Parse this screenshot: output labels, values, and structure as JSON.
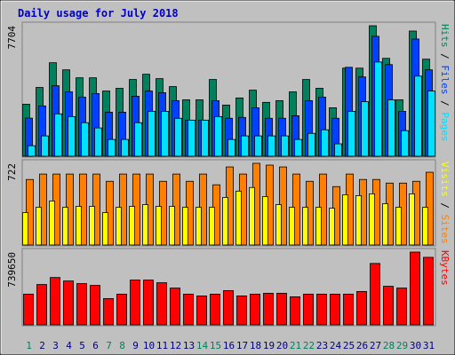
{
  "chart_data": [
    {
      "type": "bar",
      "title": "Daily usage for July 2018",
      "categories": [
        "1",
        "2",
        "3",
        "4",
        "5",
        "6",
        "7",
        "8",
        "9",
        "10",
        "11",
        "12",
        "13",
        "14",
        "15",
        "16",
        "17",
        "18",
        "19",
        "20",
        "21",
        "22",
        "23",
        "24",
        "25",
        "26",
        "27",
        "28",
        "29",
        "30",
        "31"
      ],
      "ylim": [
        0,
        7704
      ],
      "yticks": [
        7704
      ],
      "series": [
        {
          "name": "Hits",
          "color": "#00805c",
          "values": [
            3070,
            4060,
            5520,
            5100,
            4630,
            4630,
            3850,
            4010,
            4530,
            4840,
            4580,
            4110,
            3330,
            3330,
            4530,
            3020,
            3440,
            3900,
            3180,
            3280,
            3800,
            4530,
            4010,
            2860,
            5200,
            5200,
            7704,
            5780,
            3330,
            7390,
            5730
          ]
        },
        {
          "name": "Files",
          "color": "#0040ff",
          "values": [
            2250,
            2970,
            4160,
            3800,
            3490,
            3700,
            2600,
            2600,
            3540,
            3850,
            3750,
            3280,
            2130,
            2130,
            3280,
            2240,
            2290,
            2860,
            2240,
            2240,
            2390,
            3280,
            3490,
            2240,
            5250,
            4680,
            7080,
            5410,
            2650,
            6920,
            5100
          ]
        },
        {
          "name": "Pages",
          "color": "#00e0ff",
          "values": [
            620,
            1200,
            2500,
            2340,
            1980,
            1670,
            990,
            990,
            1980,
            2650,
            2650,
            2240,
            2130,
            2130,
            2340,
            990,
            1200,
            1200,
            1200,
            1200,
            990,
            1350,
            1560,
            730,
            2650,
            3220,
            5560,
            3330,
            1510,
            4730,
            3850
          ]
        }
      ]
    },
    {
      "type": "bar",
      "categories": [
        "1",
        "2",
        "3",
        "4",
        "5",
        "6",
        "7",
        "8",
        "9",
        "10",
        "11",
        "12",
        "13",
        "14",
        "15",
        "16",
        "17",
        "18",
        "19",
        "20",
        "21",
        "22",
        "23",
        "24",
        "25",
        "26",
        "27",
        "28",
        "29",
        "30",
        "31"
      ],
      "ylim": [
        0,
        722
      ],
      "yticks": [
        722
      ],
      "series": [
        {
          "name": "Visits",
          "color": "#ffff00",
          "values": [
            286,
            333,
            389,
            333,
            341,
            341,
            286,
            333,
            341,
            357,
            341,
            341,
            333,
            333,
            333,
            420,
            476,
            508,
            428,
            357,
            333,
            333,
            333,
            325,
            444,
            436,
            452,
            365,
            333,
            452,
            333
          ]
        },
        {
          "name": "Sites",
          "color": "#ff8000",
          "values": [
            579,
            627,
            627,
            627,
            627,
            627,
            563,
            627,
            627,
            627,
            563,
            627,
            563,
            627,
            532,
            690,
            627,
            722,
            706,
            690,
            627,
            563,
            627,
            516,
            627,
            579,
            579,
            547,
            547,
            563,
            643
          ]
        }
      ]
    },
    {
      "type": "bar",
      "categories": [
        "1",
        "2",
        "3",
        "4",
        "5",
        "6",
        "7",
        "8",
        "9",
        "10",
        "11",
        "12",
        "13",
        "14",
        "15",
        "16",
        "17",
        "18",
        "19",
        "20",
        "21",
        "22",
        "23",
        "24",
        "25",
        "26",
        "27",
        "28",
        "29",
        "30",
        "31"
      ],
      "category_colors": [
        "#00805c",
        "#000080",
        "#000080",
        "#000080",
        "#000080",
        "#000080",
        "#00805c",
        "#00805c",
        "#000080",
        "#000080",
        "#000080",
        "#000080",
        "#000080",
        "#00805c",
        "#00805c",
        "#000080",
        "#000080",
        "#000080",
        "#000080",
        "#000080",
        "#00805c",
        "#00805c",
        "#000080",
        "#000080",
        "#000080",
        "#000080",
        "#000080",
        "#00805c",
        "#00805c",
        "#000080",
        "#000080"
      ],
      "ylim": [
        0,
        739650
      ],
      "yticks": [
        739650
      ],
      "series": [
        {
          "name": "KBytes",
          "color": "#ff0000",
          "values": [
            311900,
            410000,
            481000,
            446000,
            419000,
            401000,
            267000,
            312000,
            455000,
            455000,
            428000,
            374000,
            312000,
            294000,
            312000,
            348000,
            294000,
            312000,
            321000,
            321000,
            285000,
            312000,
            312000,
            312000,
            312000,
            339000,
            624000,
            392000,
            374000,
            739650,
            686000
          ]
        }
      ]
    }
  ]
}
